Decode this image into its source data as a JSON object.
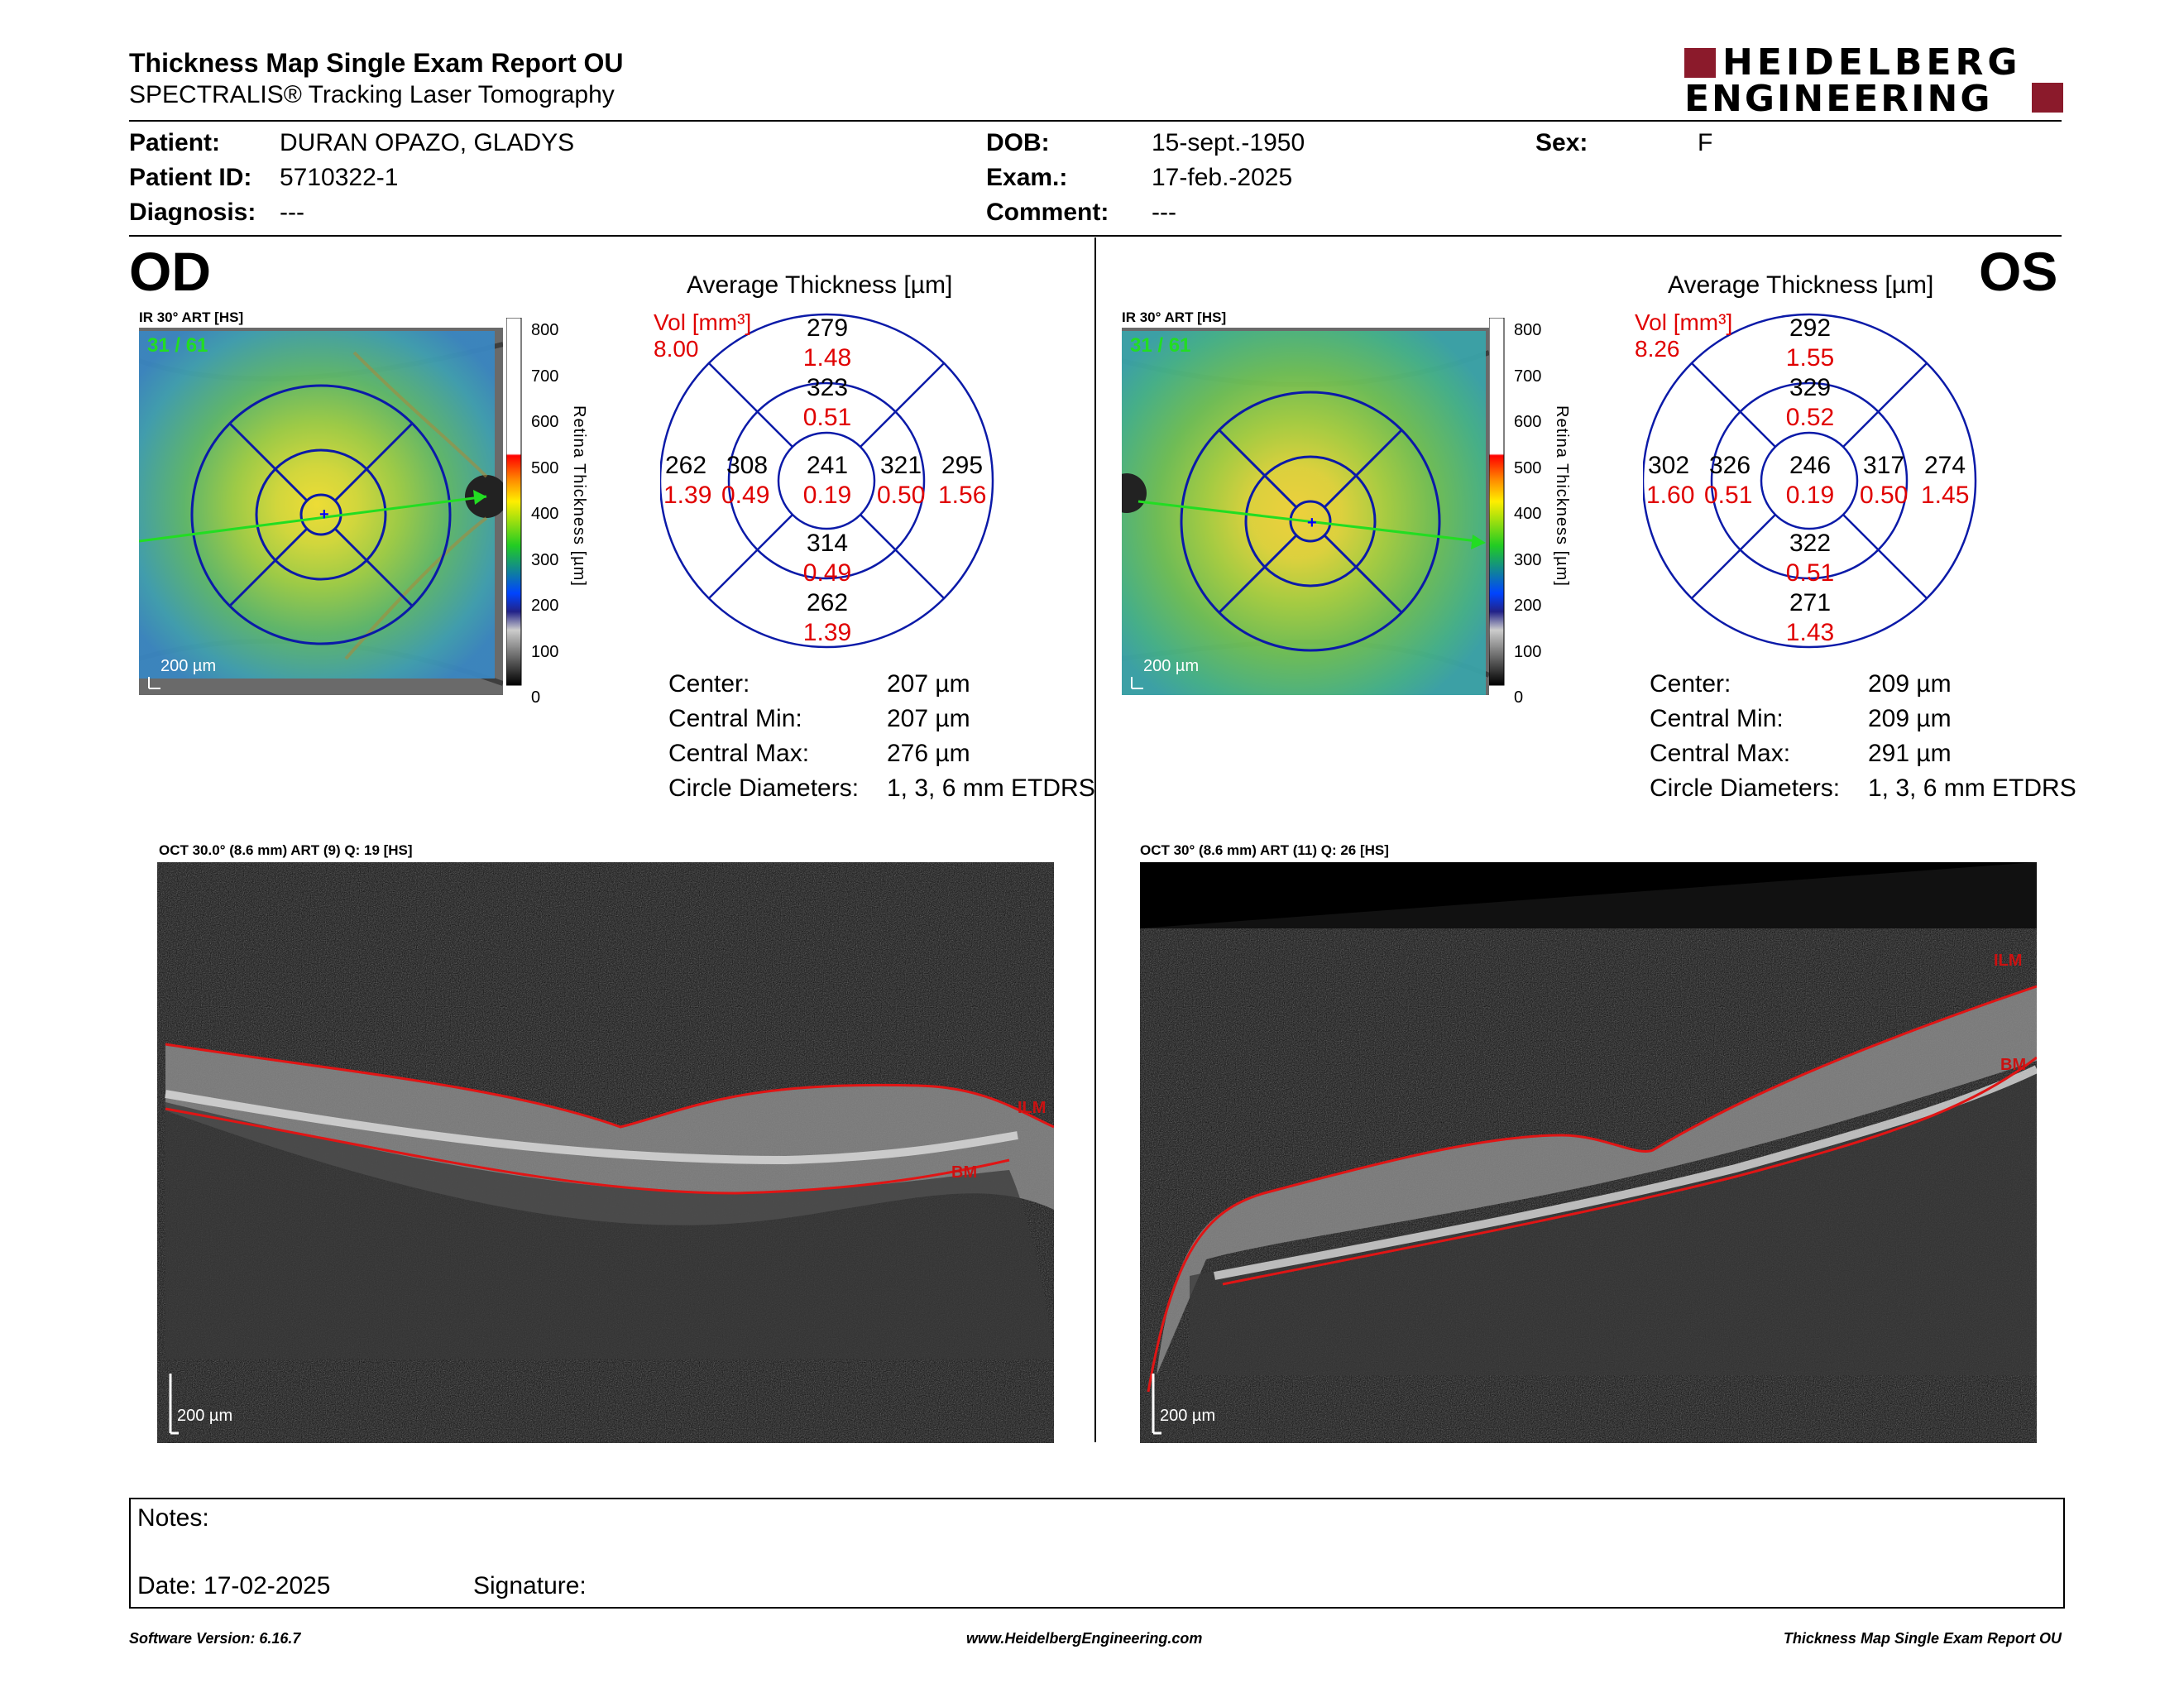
{
  "header": {
    "title": "Thickness Map Single Exam Report OU",
    "subtitle": "SPECTRALIS® Tracking Laser Tomography",
    "logo_line1": "HEIDELBERG",
    "logo_line2": "ENGINEERING"
  },
  "patient": {
    "patient_label": "Patient:",
    "patient_value": "DURAN OPAZO, GLADYS",
    "id_label": "Patient ID:",
    "id_value": "5710322-1",
    "diagnosis_label": "Diagnosis:",
    "diagnosis_value": "---",
    "dob_label": "DOB:",
    "dob_value": "15-sept.-1950",
    "exam_label": "Exam.:",
    "exam_value": "17-feb.-2025",
    "comment_label": "Comment:",
    "comment_value": "---",
    "sex_label": "Sex:",
    "sex_value": "F"
  },
  "od": {
    "eye": "OD",
    "ir_label": "IR 30° ART [HS]",
    "ir_counter": "31 / 61",
    "scale_bar": "200 µm",
    "chart_title": "Average Thickness [µm]",
    "vol_label": "Vol [mm³]",
    "vol_total": "8.00",
    "sectors": {
      "center": {
        "t": "241",
        "v": "0.19"
      },
      "inner_sup": {
        "t": "323",
        "v": "0.51"
      },
      "inner_inf": {
        "t": "314",
        "v": "0.49"
      },
      "inner_nas": {
        "t": "308",
        "v": "0.49"
      },
      "inner_tmp": {
        "t": "321",
        "v": "0.50"
      },
      "outer_sup": {
        "t": "279",
        "v": "1.48"
      },
      "outer_inf": {
        "t": "262",
        "v": "1.39"
      },
      "outer_nas": {
        "t": "262",
        "v": "1.39"
      },
      "outer_tmp": {
        "t": "295",
        "v": "1.56"
      }
    },
    "stats": {
      "center_label": "Center:",
      "center_value": "207 µm",
      "cmin_label": "Central Min:",
      "cmin_value": "207 µm",
      "cmax_label": "Central Max:",
      "cmax_value": "276 µm",
      "diam_label": "Circle Diameters:",
      "diam_value": "1, 3, 6 mm ETDRS"
    },
    "oct_label": "OCT 30.0° (8.6 mm) ART (9) Q: 19 [HS]",
    "ilm": "ILM",
    "bm": "BM",
    "oct_scale": "200 µm"
  },
  "os": {
    "eye": "OS",
    "ir_label": "IR 30° ART [HS]",
    "ir_counter": "31 / 61",
    "scale_bar": "200 µm",
    "chart_title": "Average Thickness [µm]",
    "vol_label": "Vol [mm³]",
    "vol_total": "8.26",
    "sectors": {
      "center": {
        "t": "246",
        "v": "0.19"
      },
      "inner_sup": {
        "t": "329",
        "v": "0.52"
      },
      "inner_inf": {
        "t": "322",
        "v": "0.51"
      },
      "inner_nas": {
        "t": "326",
        "v": "0.51"
      },
      "inner_tmp": {
        "t": "317",
        "v": "0.50"
      },
      "outer_sup": {
        "t": "292",
        "v": "1.55"
      },
      "outer_inf": {
        "t": "271",
        "v": "1.43"
      },
      "outer_nas": {
        "t": "302",
        "v": "1.60"
      },
      "outer_tmp": {
        "t": "274",
        "v": "1.45"
      }
    },
    "stats": {
      "center_label": "Center:",
      "center_value": "209 µm",
      "cmin_label": "Central Min:",
      "cmin_value": "209 µm",
      "cmax_label": "Central Max:",
      "cmax_value": "291 µm",
      "diam_label": "Circle Diameters:",
      "diam_value": "1, 3, 6 mm ETDRS"
    },
    "oct_label": "OCT 30° (8.6 mm) ART (11) Q: 26 [HS]",
    "ilm": "ILM",
    "bm": "BM",
    "oct_scale": "200 µm"
  },
  "colorbar": {
    "title": "Retina Thickness [µm]",
    "ticks": [
      "800",
      "700",
      "600",
      "500",
      "400",
      "300",
      "200",
      "100",
      "0"
    ]
  },
  "notes": {
    "notes_label": "Notes:",
    "date_label": "Date: 17-02-2025",
    "signature_label": "Signature:"
  },
  "footer": {
    "software": "Software Version: 6.16.7",
    "website": "www.HeidelbergEngineering.com",
    "report": "Thickness Map Single Exam Report OU"
  },
  "colors": {
    "accent_red": "#8b1a2b",
    "grid_blue": "#0000aa",
    "value_red": "#e00000"
  }
}
